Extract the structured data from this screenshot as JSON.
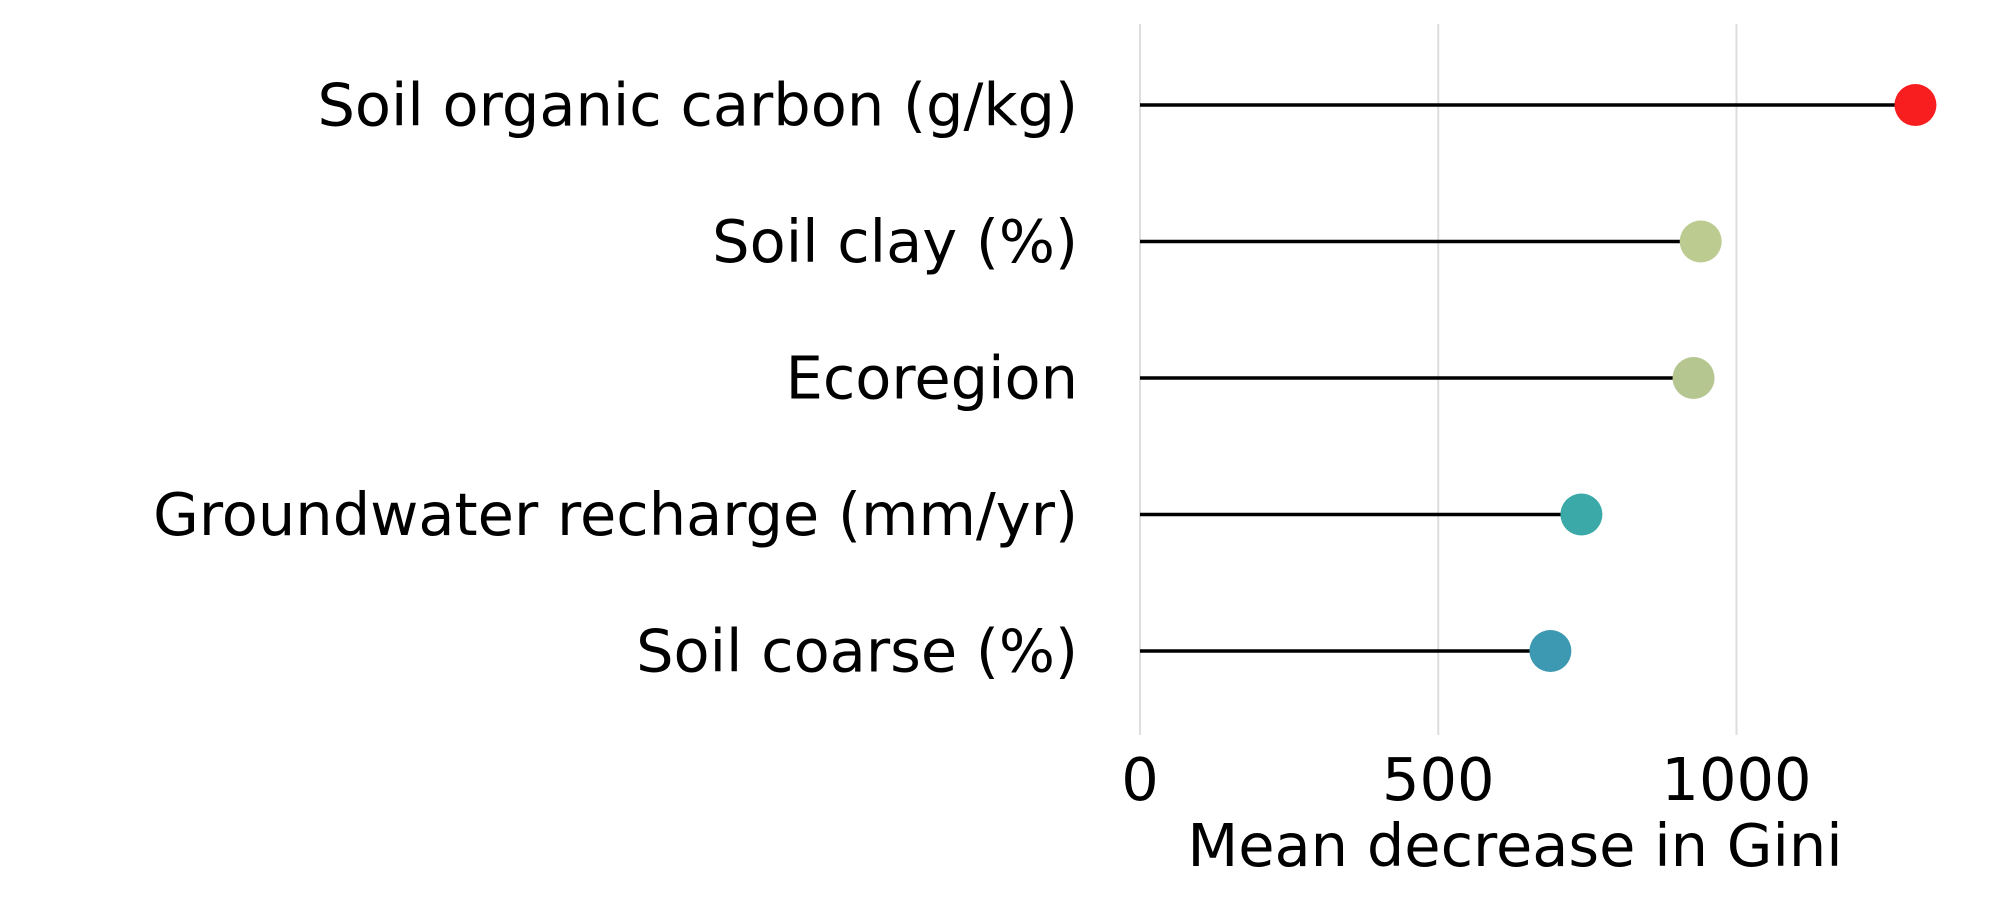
{
  "chart_data": {
    "type": "lollipop",
    "categories": [
      "Soil organic carbon (g/kg)",
      "Soil clay (%)",
      "Ecoregion",
      "Groundwater recharge (mm/yr)",
      "Soil coarse (%)"
    ],
    "values": [
      1300,
      940,
      928,
      740,
      688
    ],
    "colors": [
      "#f81d1f",
      "#bccb8f",
      "#b5c690",
      "#3aa9a7",
      "#3c99b1"
    ],
    "xlabel": "Mean decrease in Gini",
    "ylabel": "",
    "xlim": [
      0,
      1300
    ],
    "xticks": [
      0,
      500,
      1000
    ],
    "xtick_labels": [
      "0",
      "500",
      "1000"
    ],
    "grid": "vertical"
  }
}
